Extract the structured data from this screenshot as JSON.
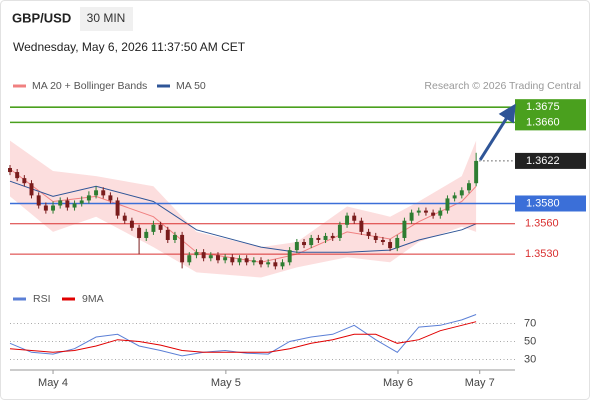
{
  "header": {
    "symbol": "GBP/USD",
    "timeframe": "30 MIN",
    "timestamp": "Wednesday, May 6, 2026 11:37:50 AM CET",
    "credit": "Research © 2026 Trading Central"
  },
  "chart_data": [
    {
      "type": "candlestick",
      "up_color": "#2e7d32",
      "down_color": "#7a1c1c",
      "xlim": [
        0,
        70
      ],
      "ylim": [
        1.35,
        1.3687
      ],
      "x": [
        0,
        1,
        2,
        3,
        4,
        5,
        6,
        7,
        8,
        9,
        10,
        11,
        12,
        13,
        14,
        15,
        16,
        17,
        18,
        19,
        20,
        21,
        22,
        23,
        24,
        25,
        26,
        27,
        28,
        29,
        30,
        31,
        32,
        33,
        34,
        35,
        36,
        37,
        38,
        39,
        40,
        41,
        42,
        43,
        44,
        45,
        46,
        47,
        48,
        49,
        50,
        51,
        52,
        53,
        54,
        55,
        56,
        57,
        58,
        59,
        60,
        61,
        62,
        63,
        64,
        65
      ],
      "open": [
        1.3615,
        1.3611,
        1.3605,
        1.36,
        1.3588,
        1.3578,
        1.3573,
        1.3578,
        1.3583,
        1.3576,
        1.358,
        1.3583,
        1.3588,
        1.3593,
        1.3588,
        1.3583,
        1.3568,
        1.3563,
        1.3556,
        1.3546,
        1.3552,
        1.3559,
        1.3554,
        1.3544,
        1.3549,
        1.3522,
        1.3529,
        1.3532,
        1.3526,
        1.3529,
        1.3524,
        1.3527,
        1.3522,
        1.3526,
        1.3522,
        1.3524,
        1.352,
        1.3522,
        1.3518,
        1.3522,
        1.3534,
        1.3542,
        1.3539,
        1.3546,
        1.3544,
        1.3548,
        1.3546,
        1.3559,
        1.3568,
        1.3563,
        1.3552,
        1.3548,
        1.3544,
        1.3542,
        1.3536,
        1.3546,
        1.3563,
        1.3571,
        1.3573,
        1.3571,
        1.3568,
        1.3573,
        1.3585,
        1.3588,
        1.3593,
        1.36
      ],
      "high": [
        1.3618,
        1.3614,
        1.3608,
        1.3603,
        1.3591,
        1.3581,
        1.3582,
        1.3586,
        1.3586,
        1.3583,
        1.3587,
        1.3592,
        1.3597,
        1.3596,
        1.3591,
        1.3586,
        1.3571,
        1.3566,
        1.3559,
        1.3555,
        1.3563,
        1.3562,
        1.3557,
        1.3552,
        1.3552,
        1.3532,
        1.3535,
        1.3535,
        1.3532,
        1.3532,
        1.353,
        1.353,
        1.3529,
        1.3529,
        1.3527,
        1.3527,
        1.3525,
        1.3525,
        1.3525,
        1.3537,
        1.3545,
        1.3545,
        1.3549,
        1.3549,
        1.3551,
        1.3551,
        1.3562,
        1.3571,
        1.3571,
        1.3566,
        1.3555,
        1.3551,
        1.3547,
        1.3545,
        1.3549,
        1.3566,
        1.3574,
        1.3576,
        1.3576,
        1.3574,
        1.3576,
        1.3588,
        1.3591,
        1.3596,
        1.3603,
        1.363
      ],
      "low": [
        1.3608,
        1.3602,
        1.3597,
        1.3585,
        1.3575,
        1.357,
        1.357,
        1.3575,
        1.3573,
        1.3573,
        1.3577,
        1.358,
        1.3585,
        1.3585,
        1.358,
        1.3565,
        1.356,
        1.3553,
        1.353,
        1.3543,
        1.3549,
        1.3551,
        1.3541,
        1.3541,
        1.3516,
        1.3519,
        1.3526,
        1.3523,
        1.3523,
        1.3521,
        1.3521,
        1.3519,
        1.3519,
        1.3519,
        1.3519,
        1.3517,
        1.3517,
        1.3515,
        1.3515,
        1.3519,
        1.3531,
        1.3536,
        1.3536,
        1.3541,
        1.3541,
        1.3543,
        1.3543,
        1.3556,
        1.356,
        1.3549,
        1.3545,
        1.3541,
        1.3539,
        1.3533,
        1.3533,
        1.3543,
        1.356,
        1.3568,
        1.3568,
        1.3565,
        1.3565,
        1.357,
        1.3582,
        1.3585,
        1.359,
        1.3597
      ],
      "close": [
        1.3611,
        1.3605,
        1.36,
        1.3588,
        1.3578,
        1.3573,
        1.3578,
        1.3583,
        1.3576,
        1.358,
        1.3583,
        1.3588,
        1.3593,
        1.3588,
        1.3583,
        1.3568,
        1.3563,
        1.3556,
        1.3546,
        1.3552,
        1.3559,
        1.3554,
        1.3544,
        1.3549,
        1.3522,
        1.3529,
        1.3532,
        1.3526,
        1.3529,
        1.3524,
        1.3527,
        1.3522,
        1.3526,
        1.3522,
        1.3524,
        1.352,
        1.3522,
        1.3518,
        1.3522,
        1.3534,
        1.3542,
        1.3539,
        1.3546,
        1.3544,
        1.3548,
        1.3546,
        1.3559,
        1.3568,
        1.3563,
        1.3552,
        1.3548,
        1.3544,
        1.3542,
        1.3536,
        1.3546,
        1.3563,
        1.3571,
        1.3573,
        1.3571,
        1.3568,
        1.3573,
        1.3585,
        1.3588,
        1.3593,
        1.36,
        1.3622
      ],
      "series": [
        {
          "name": "MA 20 + Bollinger Bands",
          "color": "#f08080",
          "band_color": "#fbd3d3",
          "x": [
            0,
            6,
            12,
            20,
            26,
            35,
            40,
            47,
            53,
            57,
            63,
            65
          ],
          "values": [
            1.3614,
            1.3582,
            1.3587,
            1.3567,
            1.3532,
            1.3522,
            1.353,
            1.3552,
            1.3545,
            1.3562,
            1.3582,
            1.3597
          ],
          "upper": [
            1.3642,
            1.3612,
            1.3607,
            1.3597,
            1.3552,
            1.3537,
            1.3542,
            1.3577,
            1.3567,
            1.3582,
            1.3607,
            1.3642
          ],
          "lower": [
            1.3587,
            1.3552,
            1.3567,
            1.3537,
            1.3512,
            1.3507,
            1.3517,
            1.3527,
            1.3522,
            1.3542,
            1.3557,
            1.3552
          ]
        },
        {
          "name": "MA 50",
          "color": "#2f5597",
          "x": [
            0,
            6,
            12,
            20,
            26,
            35,
            40,
            47,
            53,
            57,
            63,
            65
          ],
          "values": [
            1.3602,
            1.3587,
            1.3597,
            1.3582,
            1.3554,
            1.3537,
            1.3532,
            1.3532,
            1.3534,
            1.3544,
            1.3554,
            1.356
          ]
        }
      ],
      "levels": [
        {
          "value": 1.3675,
          "label": "1.3675",
          "color": "#4aa01e",
          "boxed": true
        },
        {
          "value": 1.366,
          "label": "1.3660",
          "color": "#4aa01e",
          "boxed": true
        },
        {
          "value": 1.358,
          "label": "1.3580",
          "color": "#3b6fd8",
          "boxed": true
        },
        {
          "value": 1.356,
          "label": "1.3560",
          "color": "#d93030",
          "boxed": false
        },
        {
          "value": 1.353,
          "label": "1.3530",
          "color": "#d93030",
          "boxed": false
        }
      ],
      "last_price": {
        "value": 1.3622,
        "label": "1.3622",
        "color": "#222222"
      }
    },
    {
      "type": "line",
      "xlim": [
        0,
        70
      ],
      "ylim": [
        20,
        85
      ],
      "yticks": [
        30,
        50,
        70
      ],
      "grid": true,
      "xticks": [
        {
          "value": 6,
          "label": "May 4"
        },
        {
          "value": 30.1,
          "label": "May 5"
        },
        {
          "value": 54.1,
          "label": "May 6"
        },
        {
          "value": 65.5,
          "label": "May 7"
        }
      ],
      "series": [
        {
          "name": "RSI",
          "color": "#5b7fd6",
          "x": [
            0,
            3,
            6,
            9,
            12,
            15,
            18,
            21,
            24,
            27,
            30,
            33,
            36,
            39,
            42,
            45,
            48,
            51,
            54,
            57,
            60,
            63,
            65
          ],
          "values": [
            48,
            38,
            36,
            42,
            55,
            58,
            45,
            40,
            34,
            38,
            40,
            37,
            36,
            50,
            55,
            58,
            68,
            52,
            38,
            66,
            68,
            74,
            80
          ]
        },
        {
          "name": "9MA",
          "color": "#e00000",
          "x": [
            0,
            3,
            6,
            9,
            12,
            15,
            18,
            21,
            24,
            27,
            30,
            33,
            36,
            39,
            42,
            45,
            48,
            51,
            54,
            57,
            60,
            63,
            65
          ],
          "values": [
            42,
            40,
            38,
            40,
            45,
            52,
            50,
            46,
            40,
            38,
            38,
            38,
            38,
            42,
            48,
            52,
            58,
            58,
            48,
            52,
            62,
            68,
            72
          ]
        }
      ]
    }
  ]
}
